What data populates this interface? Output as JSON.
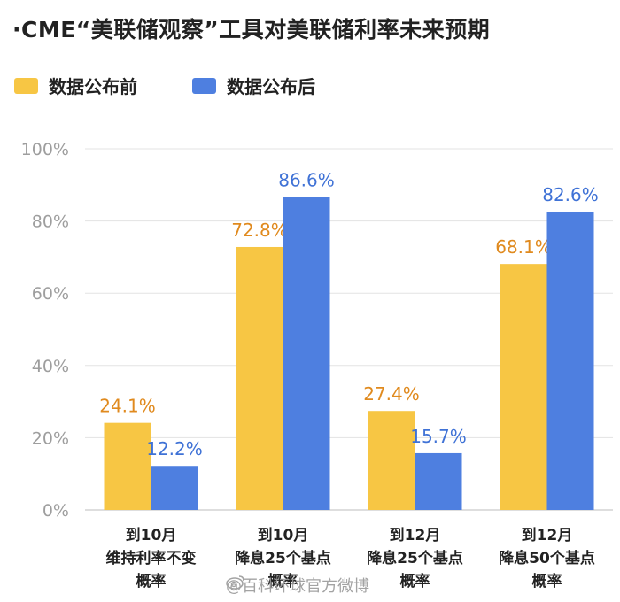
{
  "title": "·CME“美联储观察”工具对美联储利率未来预期",
  "legend": [
    {
      "label": "数据公布前",
      "color": "#F7C644"
    },
    {
      "label": "数据公布后",
      "color": "#4E7FE0"
    }
  ],
  "watermark": "@百科环球官方微博",
  "chart_data": {
    "type": "bar",
    "title": "·CME“美联储观察”工具对美联储利率未来预期",
    "categories": [
      [
        "到10月",
        "维持利率不变",
        "概率"
      ],
      [
        "到10月",
        "降息25个基点",
        "概率"
      ],
      [
        "到12月",
        "降息25个基点",
        "概率"
      ],
      [
        "到12月",
        "降息50个基点",
        "概率"
      ]
    ],
    "series": [
      {
        "name": "数据公布前",
        "values": [
          24.1,
          72.8,
          27.4,
          68.1
        ],
        "labels": [
          "24.1%",
          "72.8%",
          "27.4%",
          "68.1%"
        ],
        "color": "#F7C644",
        "label_color": "#E08A1E"
      },
      {
        "name": "数据公布后",
        "values": [
          12.2,
          86.6,
          15.7,
          82.6
        ],
        "labels": [
          "12.2%",
          "86.6%",
          "15.7%",
          "82.6%"
        ],
        "color": "#4E7FE0",
        "label_color": "#3F72D6"
      }
    ],
    "yticks": [
      "0%",
      "20%",
      "40%",
      "60%",
      "80%",
      "100%"
    ],
    "ylim": [
      0,
      100
    ],
    "grid": true,
    "legend_position": "top-left",
    "xlabel": "",
    "ylabel": ""
  }
}
